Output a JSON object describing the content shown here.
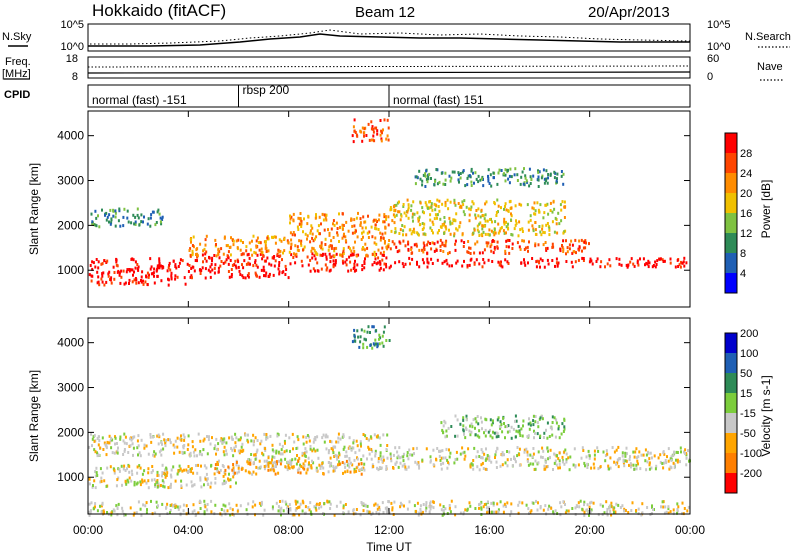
{
  "header": {
    "station": "Hokkaido (fitACF)",
    "beam": "Beam 12",
    "date": "20/Apr/2013"
  },
  "colors": {
    "power_scale": [
      "#0000ff",
      "#1f5fb4",
      "#2e8b57",
      "#7fc241",
      "#f0c000",
      "#ff8c00",
      "#ff4500",
      "#ff0000"
    ],
    "velocity_scale": [
      "#ff0000",
      "#ff7f00",
      "#ffa500",
      "#c8c8c8",
      "#7ccd3c",
      "#2e8b57",
      "#1f5fb4",
      "#0000cc"
    ],
    "ground_scatter": "#bebebe"
  },
  "top_panel": {
    "nsky_label": "N.Sky",
    "nsearch_label": "N.Search",
    "left_ticks": [
      "10^5",
      "10^0"
    ],
    "right_ticks": [
      "10^5",
      "10^0"
    ],
    "freq_label_1": "Freq.",
    "freq_label_2": "[MHz]",
    "freq_ticks": [
      "18",
      "8"
    ],
    "nave_label": "Nave",
    "nave_ticks": [
      "60",
      "0"
    ],
    "cpid_label": "CPID",
    "cpid_modes": [
      {
        "label": "normal (fast) -151",
        "start_hr": 0,
        "end_hr": 6
      },
      {
        "label": "rbsp 200",
        "start_hr": 6,
        "end_hr": 12
      },
      {
        "label": "normal (fast) 151",
        "start_hr": 12,
        "end_hr": 24
      }
    ]
  },
  "chart_data": [
    {
      "type": "heatmap",
      "name": "power",
      "ylabel": "Slant Range [km]",
      "y_ticks": [
        "1000",
        "2000",
        "3000",
        "4000"
      ],
      "ylim": [
        180,
        4550
      ],
      "xlim": [
        0,
        24
      ],
      "colorbar_label": "Power [dB]",
      "colorbar_ticks": [
        "4",
        "8",
        "12",
        "16",
        "20",
        "24",
        "28"
      ],
      "regions": [
        {
          "t0": 0,
          "t1": 4,
          "r0": 700,
          "r1": 1300,
          "level": 7
        },
        {
          "t0": 4,
          "t1": 8,
          "r0": 850,
          "r1": 1400,
          "level": 7
        },
        {
          "t0": 8,
          "t1": 12,
          "r0": 1000,
          "r1": 1400,
          "level": 7
        },
        {
          "t0": 4,
          "t1": 8,
          "r0": 1350,
          "r1": 1800,
          "level": 5
        },
        {
          "t0": 8,
          "t1": 12,
          "r0": 1350,
          "r1": 2300,
          "level": 5
        },
        {
          "t0": 12,
          "t1": 24,
          "r0": 1100,
          "r1": 1300,
          "level": 7
        },
        {
          "t0": 12,
          "t1": 20,
          "r0": 1400,
          "r1": 1700,
          "level": 6
        },
        {
          "t0": 12,
          "t1": 19,
          "r0": 1800,
          "r1": 2600,
          "level": 4
        },
        {
          "t0": 13,
          "t1": 19,
          "r0": 2900,
          "r1": 3300,
          "level": 2
        },
        {
          "t0": 0,
          "t1": 3,
          "r0": 2000,
          "r1": 2400,
          "level": 2
        },
        {
          "t0": 10.5,
          "t1": 12,
          "r0": 3900,
          "r1": 4400,
          "level": 6
        }
      ]
    },
    {
      "type": "heatmap",
      "name": "velocity",
      "ylabel": "Slant Range [km]",
      "y_ticks": [
        "1000",
        "2000",
        "3000",
        "4000"
      ],
      "ylim": [
        180,
        4550
      ],
      "xlim": [
        0,
        24
      ],
      "xlabel": "Time UT",
      "x_ticks": [
        "00:00",
        "04:00",
        "08:00",
        "12:00",
        "16:00",
        "20:00",
        "00:00"
      ],
      "colorbar_label": "Velocity [m s-1]",
      "colorbar_ticks": [
        "-200",
        "-100",
        "-50",
        "-15",
        "15",
        "50",
        "100",
        "200"
      ],
      "regions": [
        {
          "t0": 0,
          "t1": 6,
          "r0": 800,
          "r1": 1300,
          "level": 3
        },
        {
          "t0": 6,
          "t1": 12,
          "r0": 1200,
          "r1": 1500,
          "level": 3
        },
        {
          "t0": 0,
          "t1": 12,
          "r0": 1500,
          "r1": 2000,
          "level": 3
        },
        {
          "t0": 12,
          "t1": 24,
          "r0": 1200,
          "r1": 1700,
          "level": 3
        },
        {
          "t0": 5,
          "t1": 11,
          "r0": 1100,
          "r1": 1400,
          "level": 2
        },
        {
          "t0": 14,
          "t1": 19,
          "r0": 1900,
          "r1": 2400,
          "level": 4
        },
        {
          "t0": 10.5,
          "t1": 12,
          "r0": 3900,
          "r1": 4400,
          "level": 5
        },
        {
          "t0": 0,
          "t1": 24,
          "r0": 180,
          "r1": 500,
          "level": 3
        }
      ]
    }
  ]
}
